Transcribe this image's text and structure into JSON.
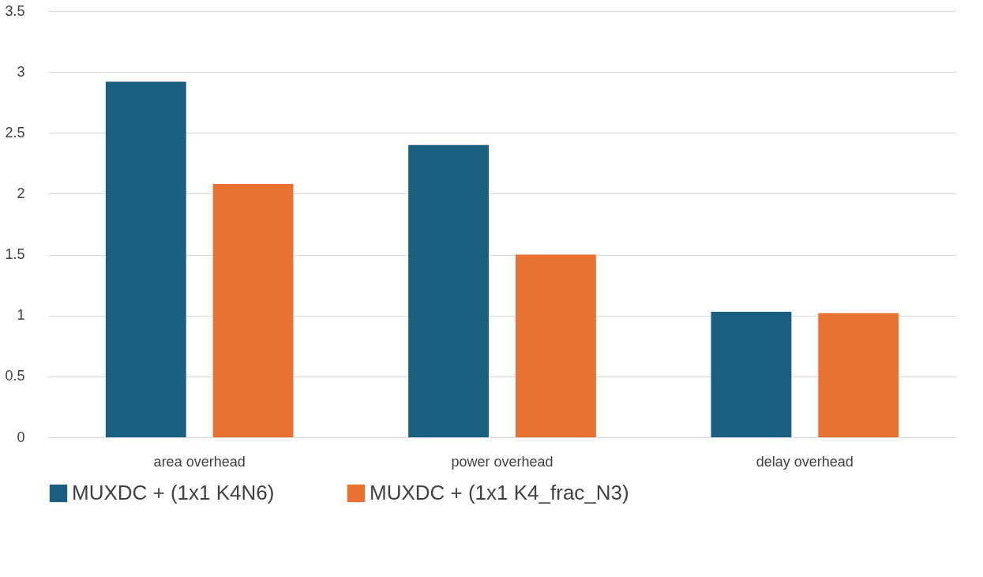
{
  "chart_data": {
    "type": "bar",
    "categories": [
      "area overhead",
      "power overhead",
      "delay overhead"
    ],
    "series": [
      {
        "name": "MUXDC + (1x1 K4N6)",
        "color": "#1a5e80",
        "values": [
          2.92,
          2.4,
          1.03
        ]
      },
      {
        "name": "MUXDC + (1x1 K4_frac_N3)",
        "color": "#e97132",
        "values": [
          2.08,
          1.5,
          1.02
        ]
      }
    ],
    "ylim": [
      0,
      3.5
    ],
    "yticks": [
      0,
      0.5,
      1,
      1.5,
      2,
      2.5,
      3,
      3.5
    ],
    "grid": "y",
    "legend": "bottom"
  }
}
